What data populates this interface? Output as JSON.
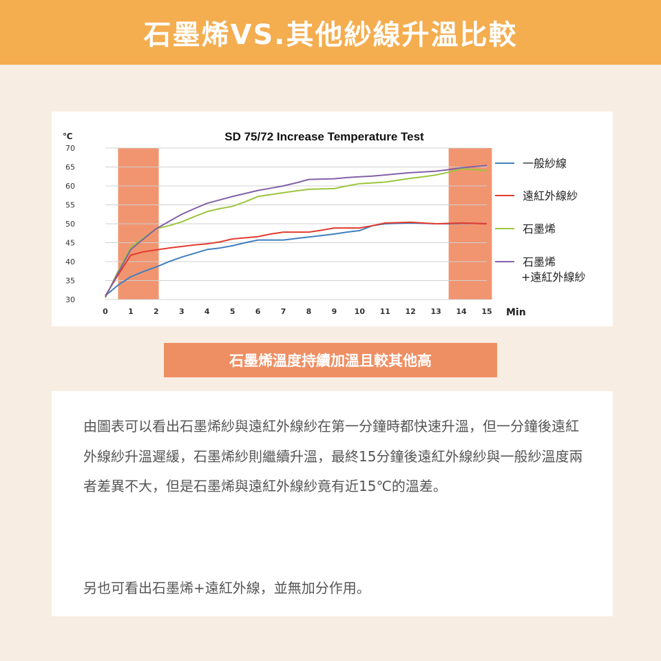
{
  "header": {
    "title": "石墨烯VS.其他紗線升溫比較"
  },
  "banner": {
    "text": "石墨烯溫度持續加溫且較其他高"
  },
  "body_text": {
    "paragraph1": "由圖表可以看出石墨烯紗與遠紅外線紗在第一分鐘時都快速升溫，但一分鐘後遠紅外線紗升溫遲緩，石墨烯紗則繼續升溫，最終15分鐘後遠紅外線紗與一般紗溫度兩者差異不大，但是石墨烯與遠紅外線紗竟有近15℃的溫差。",
    "paragraph2": "另也可看出石墨烯+遠紅外線，並無加分作用。"
  },
  "colors": {
    "header_bg": "#f4ad4f",
    "banner_bg": "#ee8f63",
    "highlight": "#f08a62",
    "series_blue": "#3f7fbf",
    "series_red": "#e23a2e",
    "series_green": "#9bc53d",
    "series_purple": "#8260a8"
  },
  "chart_data": {
    "type": "line",
    "title": "SD 75/72  Increase Temperature Test",
    "ylabel": "℃",
    "xlabel": "Min",
    "xlim": [
      0,
      15
    ],
    "ylim": [
      30,
      70
    ],
    "x_ticks": [
      "0",
      "1",
      "2",
      "3",
      "4",
      "5",
      "6",
      "7",
      "8",
      "9",
      "10",
      "11",
      "12",
      "13",
      "14",
      "15"
    ],
    "y_ticks": [
      "30",
      "35",
      "40",
      "45",
      "50",
      "55",
      "60",
      "65",
      "70"
    ],
    "grid": true,
    "legend_position": "right",
    "highlight_ranges": [
      [
        0.5,
        2.1
      ],
      [
        13.5,
        15.2
      ]
    ],
    "x": [
      0,
      0.5,
      1,
      1.5,
      2,
      2.5,
      3,
      3.5,
      4,
      4.5,
      5,
      5.5,
      6,
      6.5,
      7,
      7.5,
      8,
      8.5,
      9,
      9.5,
      10,
      10.5,
      11,
      11.5,
      12,
      12.5,
      13,
      13.5,
      14,
      14.5,
      15
    ],
    "series": [
      {
        "name": "一般紗線",
        "color": "#3f7fbf",
        "values": [
          31,
          33.8,
          36.0,
          37.4,
          38.6,
          40.0,
          41.2,
          42.2,
          43.2,
          43.6,
          44.2,
          45.0,
          45.7,
          45.7,
          45.7,
          46.1,
          46.5,
          46.9,
          47.3,
          47.8,
          48.2,
          49.5,
          50.0,
          50.1,
          50.2,
          50.1,
          50.0,
          50.0,
          50.1,
          50.1,
          50.0
        ]
      },
      {
        "name": "遠紅外線紗",
        "color": "#e23a2e",
        "values": [
          31,
          36.5,
          41.7,
          42.6,
          43.1,
          43.6,
          44.0,
          44.4,
          44.7,
          45.2,
          46.0,
          46.3,
          46.6,
          47.3,
          47.8,
          47.8,
          47.8,
          48.3,
          48.9,
          48.9,
          48.9,
          49.5,
          50.2,
          50.3,
          50.4,
          50.2,
          50.0,
          50.1,
          50.2,
          50.1,
          50.0
        ]
      },
      {
        "name": "石墨烯",
        "color": "#9bc53d",
        "values": [
          30.5,
          37.5,
          43.8,
          46.3,
          48.7,
          49.5,
          50.5,
          51.9,
          53.2,
          54.0,
          54.6,
          55.8,
          57.2,
          57.7,
          58.2,
          58.7,
          59.1,
          59.2,
          59.3,
          60.0,
          60.6,
          60.8,
          61.0,
          61.5,
          62.0,
          62.4,
          62.9,
          63.6,
          64.5,
          64.3,
          64.0
        ]
      },
      {
        "name": "石墨烯\n+遠紅外線紗",
        "color": "#8260a8",
        "values": [
          30.7,
          37.0,
          43.2,
          46.0,
          48.7,
          50.6,
          52.5,
          54.0,
          55.4,
          56.3,
          57.2,
          58.0,
          58.8,
          59.4,
          60.0,
          60.8,
          61.7,
          61.8,
          61.9,
          62.2,
          62.4,
          62.6,
          62.9,
          63.2,
          63.5,
          63.7,
          63.9,
          64.3,
          64.8,
          65.1,
          65.4
        ]
      }
    ]
  }
}
